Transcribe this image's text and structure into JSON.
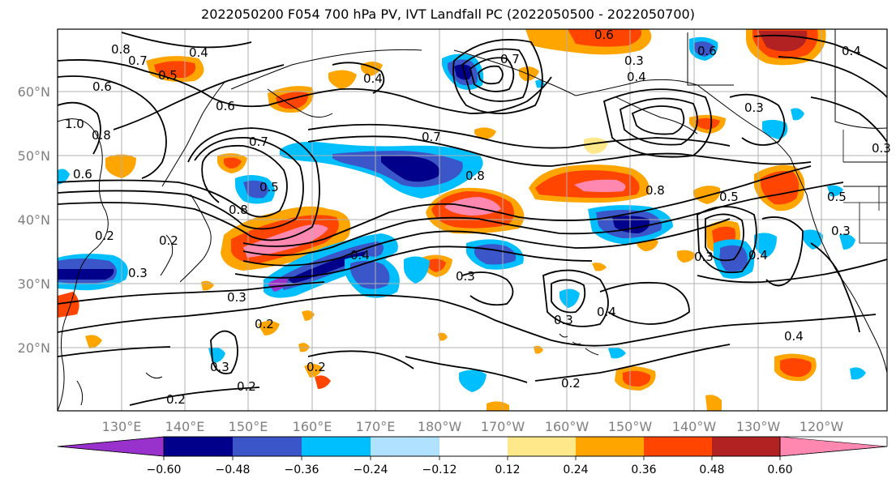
{
  "title": "2022050200 F054 700 hPa PV, IVT Landfall PC (2022050500 - 2022050700)",
  "lat_labels": [
    "60°N",
    "50°N",
    "40°N",
    "30°N",
    "20°N"
  ],
  "lon_labels": [
    "130°E",
    "140°E",
    "150°E",
    "160°E",
    "170°E",
    "180°W",
    "170°W",
    "160°W",
    "150°W",
    "140°W",
    "130°W",
    "120°W"
  ],
  "colorbar": {
    "ticks": [
      "−0.60",
      "−0.48",
      "−0.36",
      "−0.24",
      "−0.12",
      "0.12",
      "0.24",
      "0.36",
      "0.48",
      "0.60"
    ],
    "colors": [
      "#9932cc",
      "#00008b",
      "#3a56c8",
      "#00bfff",
      "#b0e2ff",
      "#ffffff",
      "#ffe88a",
      "#ffa500",
      "#ff4500",
      "#b22222",
      "#ff88b0"
    ]
  },
  "contour_labels": [
    "0.8",
    "0.7",
    "0.5",
    "0.4",
    "0.6",
    "1.0",
    "0.6",
    "0.8",
    "0.6",
    "0.5",
    "0.7",
    "0.4",
    "0.8",
    "0.7",
    "0.8",
    "0.8",
    "0.4",
    "0.3",
    "0.7",
    "0.6",
    "0.6",
    "0.4",
    "0.3",
    "0.5",
    "0.3",
    "0.5",
    "0.2",
    "0.2",
    "0.3",
    "0.4",
    "0.3",
    "0.3",
    "0.3",
    "0.2",
    "0.3",
    "0.2",
    "0.4",
    "0.3",
    "0.4",
    "0.2",
    "0.4",
    "0.2",
    "0.3",
    "0.2"
  ],
  "legend": {
    "colorbar_position": "bottom"
  }
}
